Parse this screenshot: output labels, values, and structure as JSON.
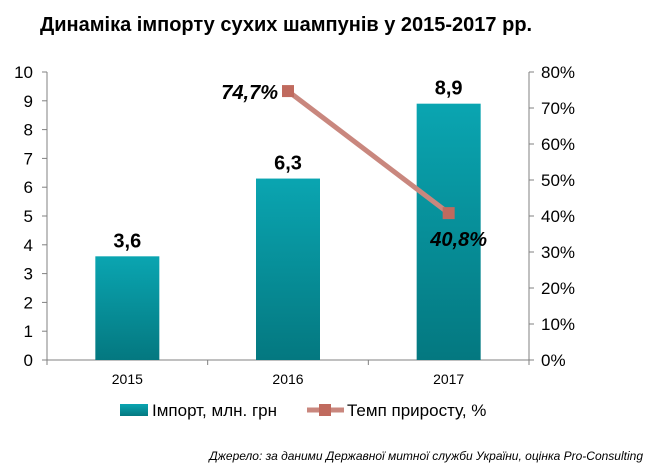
{
  "title": "Динаміка імпорту сухих шампунів у 2015-2017 рр.",
  "source": "Джерело: за даними Державної митної служби України, оцінка Pro-Consulting",
  "colors": {
    "bar_top": "#0aa5b1",
    "bar_bottom": "#047880",
    "line": "#c9877e",
    "marker": "#c06a5e",
    "axis": "#808080"
  },
  "chart_data": {
    "type": "bar",
    "categories": [
      "2015",
      "2016",
      "2017"
    ],
    "series": [
      {
        "name": "Імпорт, млн. грн",
        "type": "bar",
        "axis": "left",
        "values": [
          3.6,
          6.3,
          8.9
        ],
        "labels": [
          "3,6",
          "6,3",
          "8,9"
        ]
      },
      {
        "name": "Темп приросту, %",
        "type": "line",
        "axis": "right",
        "values": [
          null,
          74.7,
          40.8
        ],
        "labels": [
          "",
          "74,7%",
          "40,8%"
        ]
      }
    ],
    "y_left": {
      "min": 0,
      "max": 10,
      "step": 1,
      "ticks": [
        "0",
        "1",
        "2",
        "3",
        "4",
        "5",
        "6",
        "7",
        "8",
        "9",
        "10"
      ]
    },
    "y_right": {
      "min": 0,
      "max": 80,
      "step": 10,
      "ticks": [
        "0%",
        "10%",
        "20%",
        "30%",
        "40%",
        "50%",
        "60%",
        "70%",
        "80%"
      ]
    },
    "grid": false,
    "legend_position": "bottom"
  }
}
